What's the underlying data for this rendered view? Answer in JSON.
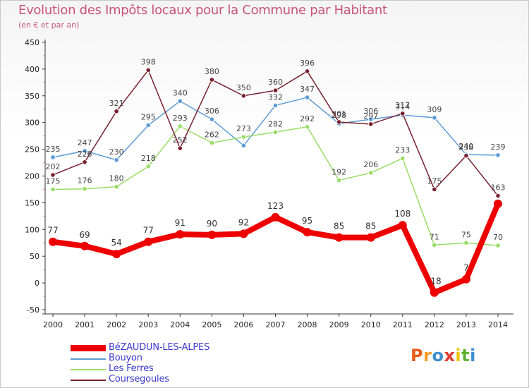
{
  "chart_data": {
    "type": "line",
    "title": "Evolution des Impôts locaux pour la Commune par Habitant",
    "subtitle": "(en € et par an)",
    "categories": [
      "2000",
      "2001",
      "2002",
      "2003",
      "2004",
      "2005",
      "2006",
      "2007",
      "2008",
      "2009",
      "2010",
      "2011",
      "2012",
      "2013",
      "2014"
    ],
    "y_ticks": [
      "-50",
      "0",
      "50",
      "100",
      "150",
      "200",
      "250",
      "300",
      "350",
      "400",
      "450"
    ],
    "ylim": [
      -50,
      450
    ],
    "xlabel": "",
    "ylabel": "",
    "grid": false,
    "legend_position": "bottom-left",
    "series": [
      {
        "name": "BéZAUDUN-LES-ALPES",
        "color": "#ee0000",
        "values": [
          77,
          69,
          54,
          77,
          91,
          90,
          92,
          123,
          95,
          85,
          85,
          108,
          -18,
          7,
          148
        ],
        "labels": [
          "77",
          "69",
          "54",
          "77",
          "91",
          "90",
          "92",
          "123",
          "95",
          "85",
          "85",
          "108",
          "-18",
          "7",
          ""
        ]
      },
      {
        "name": "Bouyon",
        "color": "#5b9bd5",
        "values": [
          235,
          247,
          230,
          295,
          340,
          306,
          257,
          332,
          347,
          298,
          306,
          314,
          309,
          240,
          239
        ],
        "labels": [
          "235",
          "247",
          "230",
          "295",
          "340",
          "306",
          "",
          "332",
          "347",
          "298",
          "306",
          "314",
          "309",
          "240",
          "239"
        ]
      },
      {
        "name": "Les Ferres",
        "color": "#99dd66",
        "values": [
          175,
          176,
          180,
          218,
          293,
          262,
          273,
          282,
          292,
          192,
          206,
          233,
          71,
          75,
          70
        ],
        "labels": [
          "175",
          "176",
          "180",
          "218",
          "293",
          "262",
          "273",
          "282",
          "292",
          "192",
          "206",
          "233",
          "71",
          "75",
          "70"
        ]
      },
      {
        "name": "Coursegoules",
        "color": "#7a2030",
        "values": [
          202,
          226,
          321,
          398,
          252,
          380,
          350,
          360,
          396,
          301,
          297,
          317,
          175,
          238,
          163
        ],
        "labels": [
          "202",
          "226",
          "321",
          "398",
          "252",
          "380",
          "350",
          "360",
          "396",
          "301",
          "297",
          "317",
          "175",
          "238",
          "163"
        ]
      }
    ]
  },
  "brand": {
    "logo_letters": [
      "P",
      "r",
      "o",
      "x",
      "i",
      "t",
      "i"
    ],
    "logo_colors": [
      "#e85a1c",
      "#f59a1e",
      "#3b8ed0",
      "#e03a2f",
      "#f2c400",
      "#60b030",
      "#3b8ed0"
    ]
  }
}
